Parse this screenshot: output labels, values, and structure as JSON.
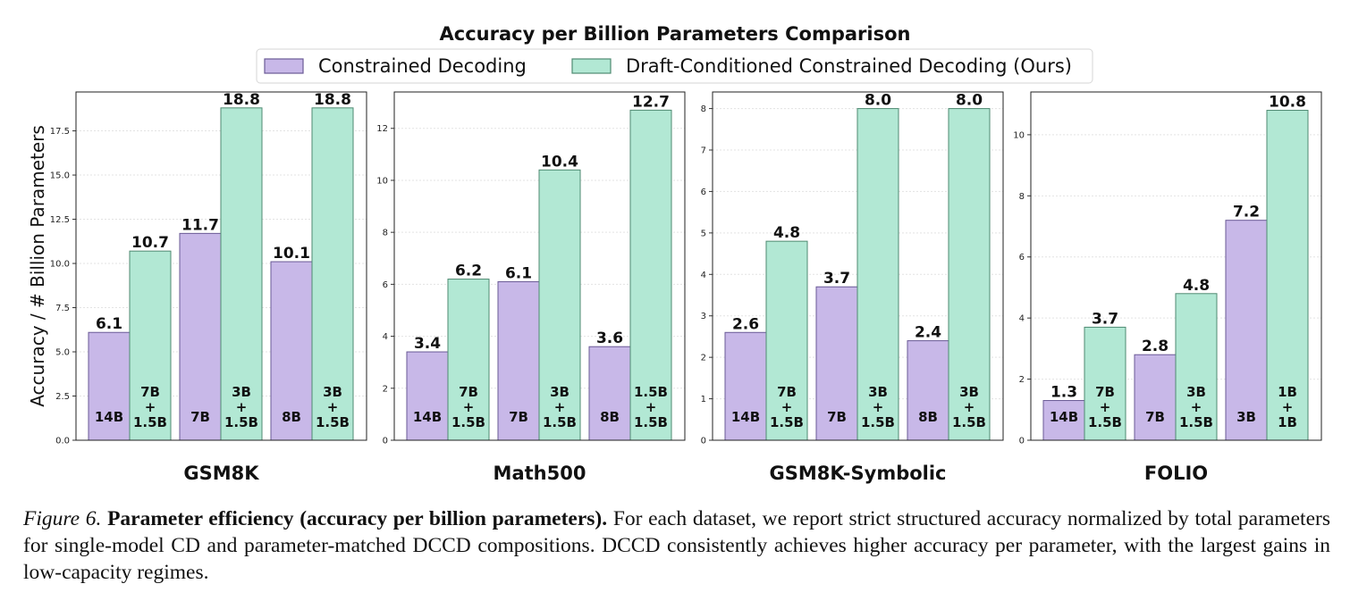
{
  "chart_data": {
    "type": "bar",
    "title": "Accuracy per Billion Parameters Comparison",
    "ylabel": "Accuracy / # Billion Parameters",
    "legend_position": "top",
    "legend": [
      {
        "name": "Constrained Decoding",
        "color": "#c8b8e8",
        "edge": "#6a5a96"
      },
      {
        "name": "Draft-Conditioned Constrained Decoding (Ours)",
        "color": "#b2e8d4",
        "edge": "#4f8a72"
      }
    ],
    "grid": "horizontal dotted",
    "panels": [
      {
        "dataset": "GSM8K",
        "ylim": [
          0,
          19.7
        ],
        "yticks": [
          0,
          2.5,
          5,
          7.5,
          10,
          12.5,
          15,
          17.5
        ],
        "ytick_labels": [
          "0.0",
          "2.5",
          "5.0",
          "7.5",
          "10.0",
          "12.5",
          "15.0",
          "17.5"
        ],
        "groups": [
          {
            "cd": {
              "value": 6.1,
              "label": "6.1",
              "size": [
                "14B"
              ]
            },
            "dccd": {
              "value": 10.7,
              "label": "10.7",
              "size": [
                "7B",
                "+",
                "1.5B"
              ]
            }
          },
          {
            "cd": {
              "value": 11.7,
              "label": "11.7",
              "size": [
                "7B"
              ]
            },
            "dccd": {
              "value": 18.8,
              "label": "18.8",
              "size": [
                "3B",
                "+",
                "1.5B"
              ]
            }
          },
          {
            "cd": {
              "value": 10.1,
              "label": "10.1",
              "size": [
                "8B"
              ]
            },
            "dccd": {
              "value": 18.8,
              "label": "18.8",
              "size": [
                "3B",
                "+",
                "1.5B"
              ]
            }
          }
        ]
      },
      {
        "dataset": "Math500",
        "ylim": [
          0,
          13.4
        ],
        "yticks": [
          0,
          2,
          4,
          6,
          8,
          10,
          12
        ],
        "ytick_labels": [
          "0",
          "2",
          "4",
          "6",
          "8",
          "10",
          "12"
        ],
        "groups": [
          {
            "cd": {
              "value": 3.4,
              "label": "3.4",
              "size": [
                "14B"
              ]
            },
            "dccd": {
              "value": 6.2,
              "label": "6.2",
              "size": [
                "7B",
                "+",
                "1.5B"
              ]
            }
          },
          {
            "cd": {
              "value": 6.1,
              "label": "6.1",
              "size": [
                "7B"
              ]
            },
            "dccd": {
              "value": 10.4,
              "label": "10.4",
              "size": [
                "3B",
                "+",
                "1.5B"
              ]
            }
          },
          {
            "cd": {
              "value": 3.6,
              "label": "3.6",
              "size": [
                "8B"
              ]
            },
            "dccd": {
              "value": 12.7,
              "label": "12.7",
              "size": [
                "1.5B",
                "+",
                "1.5B"
              ]
            }
          }
        ]
      },
      {
        "dataset": "GSM8K-Symbolic",
        "ylim": [
          0,
          8.4
        ],
        "yticks": [
          0,
          1,
          2,
          3,
          4,
          5,
          6,
          7,
          8
        ],
        "ytick_labels": [
          "0",
          "1",
          "2",
          "3",
          "4",
          "5",
          "6",
          "7",
          "8"
        ],
        "groups": [
          {
            "cd": {
              "value": 2.6,
              "label": "2.6",
              "size": [
                "14B"
              ]
            },
            "dccd": {
              "value": 4.8,
              "label": "4.8",
              "size": [
                "7B",
                "+",
                "1.5B"
              ]
            }
          },
          {
            "cd": {
              "value": 3.7,
              "label": "3.7",
              "size": [
                "7B"
              ]
            },
            "dccd": {
              "value": 8.0,
              "label": "8.0",
              "size": [
                "3B",
                "+",
                "1.5B"
              ]
            }
          },
          {
            "cd": {
              "value": 2.4,
              "label": "2.4",
              "size": [
                "8B"
              ]
            },
            "dccd": {
              "value": 8.0,
              "label": "8.0",
              "size": [
                "3B",
                "+",
                "1.5B"
              ]
            }
          }
        ]
      },
      {
        "dataset": "FOLIO",
        "ylim": [
          0,
          11.4
        ],
        "yticks": [
          0,
          2,
          4,
          6,
          8,
          10
        ],
        "ytick_labels": [
          "0",
          "2",
          "4",
          "6",
          "8",
          "10"
        ],
        "groups": [
          {
            "cd": {
              "value": 1.3,
              "label": "1.3",
              "size": [
                "14B"
              ]
            },
            "dccd": {
              "value": 3.7,
              "label": "3.7",
              "size": [
                "7B",
                "+",
                "1.5B"
              ]
            }
          },
          {
            "cd": {
              "value": 2.8,
              "label": "2.8",
              "size": [
                "7B"
              ]
            },
            "dccd": {
              "value": 4.8,
              "label": "4.8",
              "size": [
                "3B",
                "+",
                "1.5B"
              ]
            }
          },
          {
            "cd": {
              "value": 7.2,
              "label": "7.2",
              "size": [
                "3B"
              ]
            },
            "dccd": {
              "value": 10.8,
              "label": "10.8",
              "size": [
                "1B",
                "+",
                "1B"
              ]
            }
          }
        ]
      }
    ]
  },
  "caption": {
    "label": "Figure 6.",
    "title": "Parameter efficiency (accuracy per billion parameters).",
    "body": "For each dataset, we report strict structured accuracy normalized by total parameters for single-model CD and parameter-matched DCCD compositions. DCCD consistently achieves higher accuracy per parameter, with the largest gains in low-capacity regimes."
  }
}
